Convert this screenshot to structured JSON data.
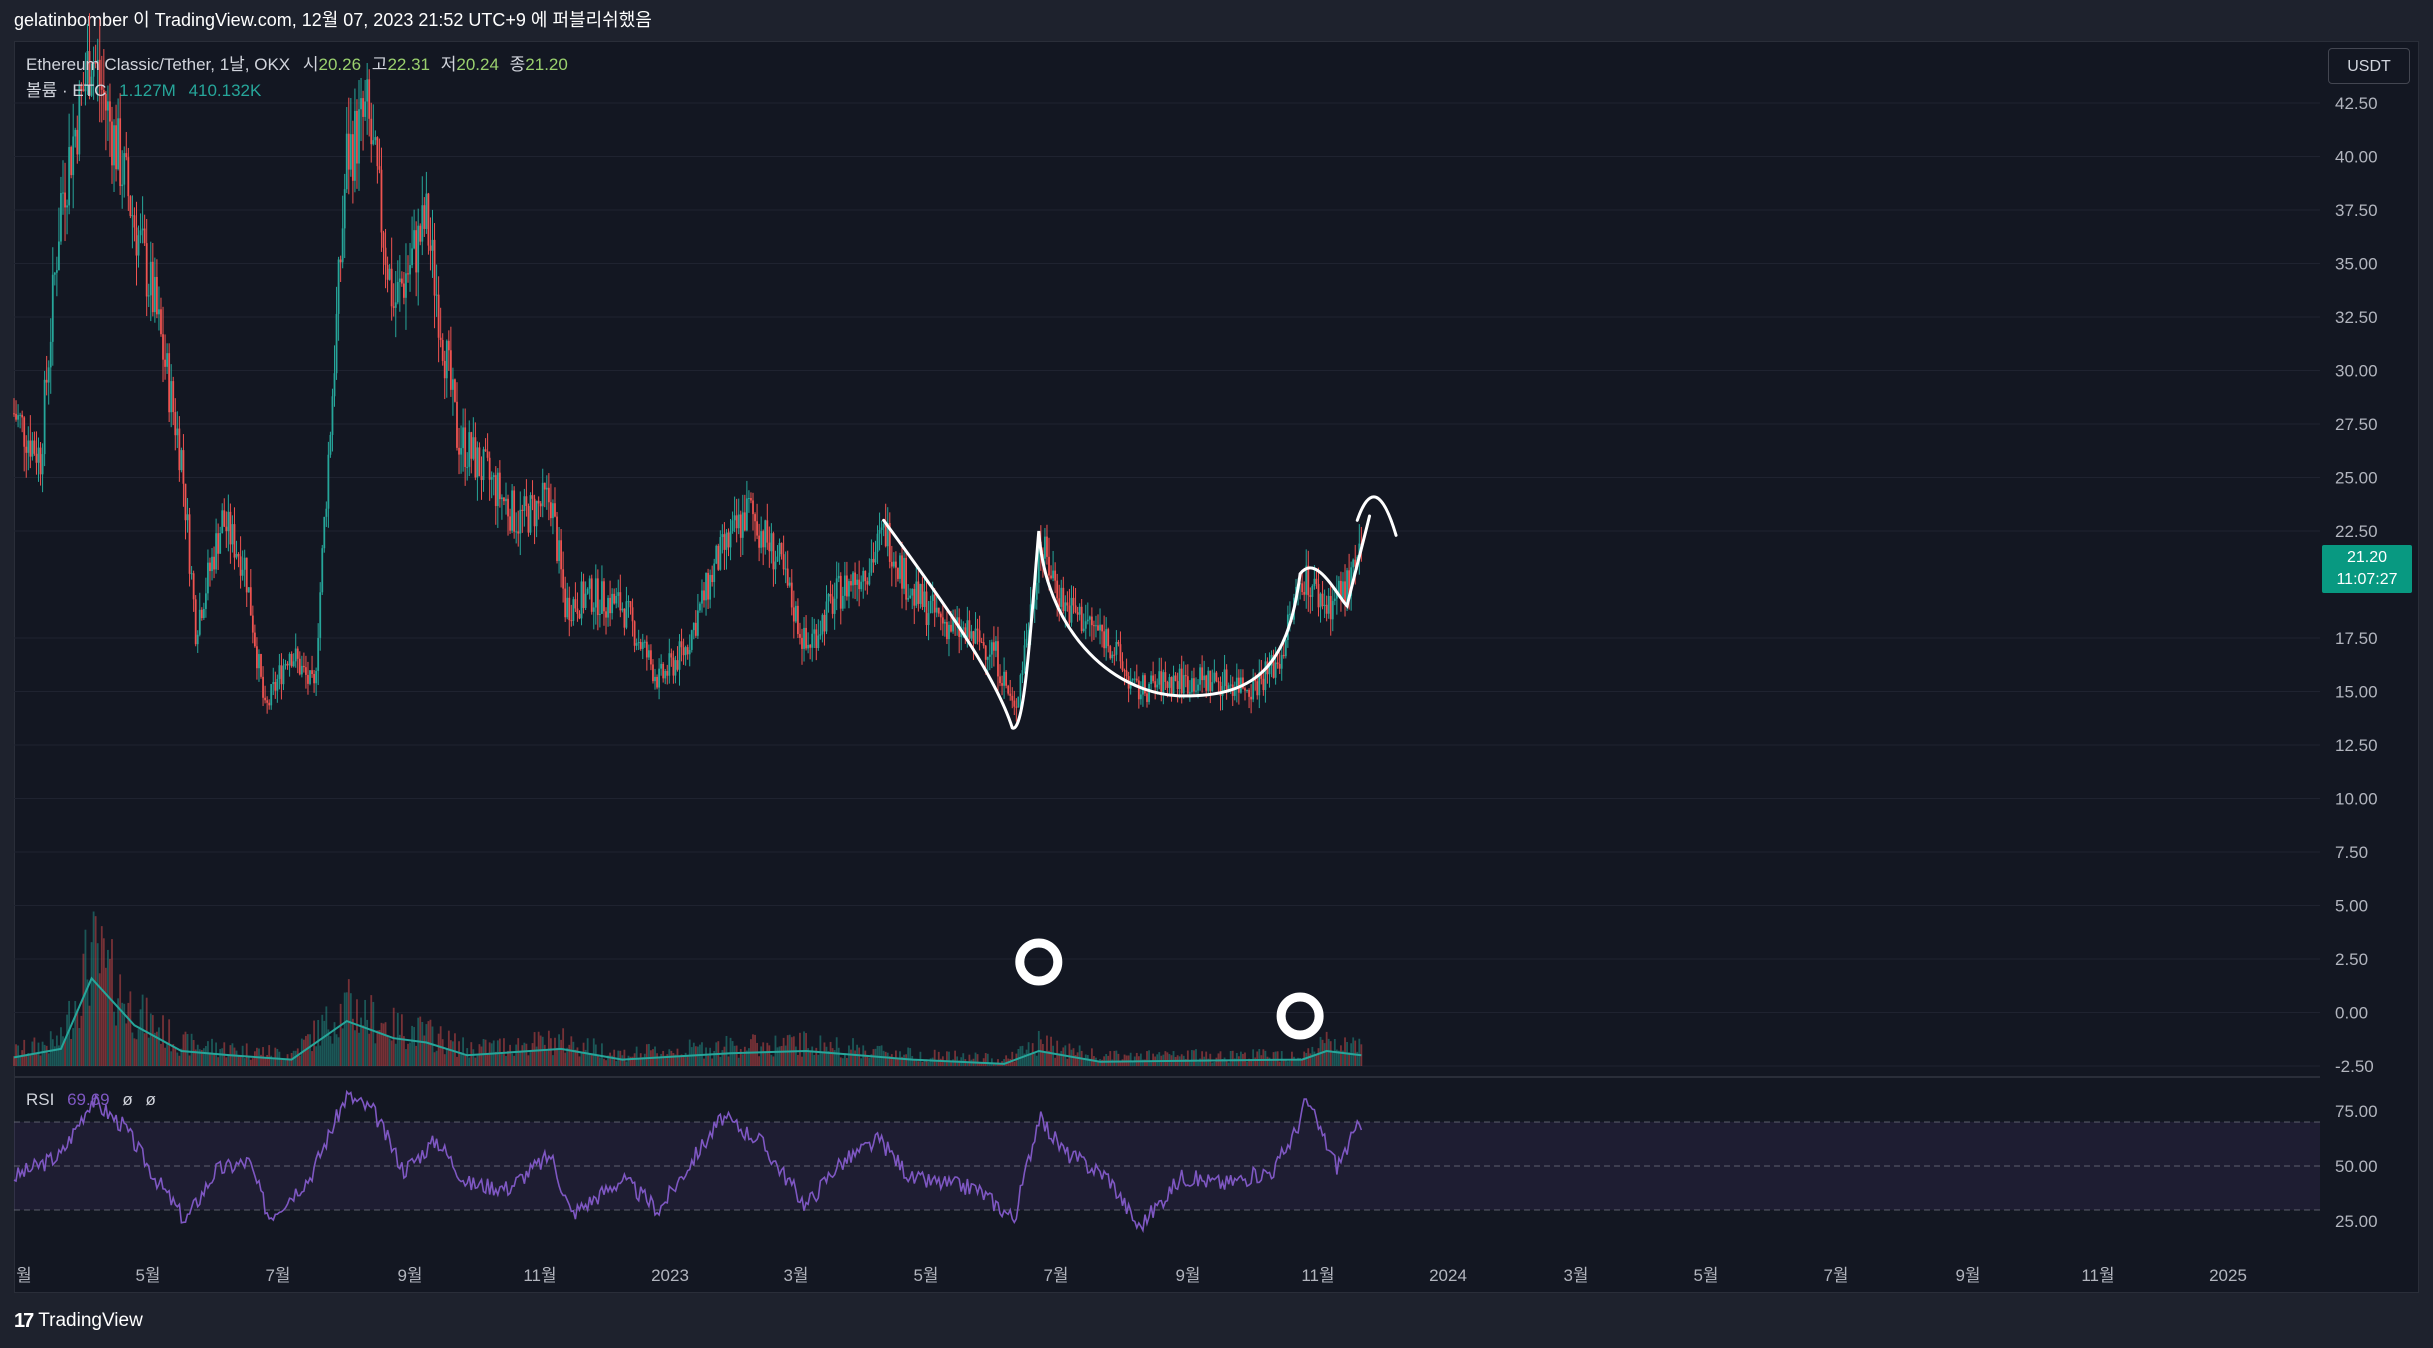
{
  "header": {
    "text": "gelatinbomber 이 TradingView.com, 12월 07, 2023 21:52 UTC+9 에 퍼블리쉬했음"
  },
  "legend": {
    "symbol": "Ethereum Classic/Tether, 1날, OKX",
    "open_label": "시",
    "open": "20.26",
    "high_label": "고",
    "high": "22.31",
    "low_label": "저",
    "low": "20.24",
    "close_label": "종",
    "close": "21.20",
    "volume_label": "볼륨 · ETC",
    "volume_value": "1.127M",
    "volume_ma": "410.132K"
  },
  "rsi_legend": {
    "label": "RSI",
    "value": "69.69",
    "extra1": "ø",
    "extra2": "ø"
  },
  "price_scale": {
    "currency": "USDT",
    "last_price": "21.20",
    "countdown": "11:07:27",
    "ticks": [
      "42.50",
      "40.00",
      "37.50",
      "35.00",
      "32.50",
      "30.00",
      "27.50",
      "25.00",
      "22.50",
      "17.50",
      "15.00",
      "12.50",
      "10.00",
      "7.50",
      "5.00",
      "2.50",
      "0.00",
      "-2.50"
    ]
  },
  "rsi_scale": {
    "ticks": [
      "75.00",
      "50.00",
      "25.00"
    ]
  },
  "time_axis": {
    "labels": [
      "월",
      "5월",
      "7월",
      "9월",
      "11월",
      "2023",
      "3월",
      "5월",
      "7월",
      "9월",
      "11월",
      "2024",
      "3월",
      "5월",
      "7월",
      "9월",
      "11월",
      "2025"
    ]
  },
  "footer": {
    "brand": "TradingView"
  },
  "colors": {
    "background": "#131722",
    "up": "#26a69a",
    "down": "#ef5350",
    "rsi": "#7e57c2",
    "volume_ma": "#26a69a",
    "annotation": "#ffffff"
  },
  "chart_data": {
    "type": "candlestick",
    "symbol": "Ethereum Classic/Tether",
    "interval": "1D",
    "exchange": "OKX",
    "price_range": [
      -2.5,
      44
    ],
    "price_path": [
      [
        "2022-02-15",
        28
      ],
      [
        "2022-02-28",
        26
      ],
      [
        "2022-03-10",
        38
      ],
      [
        "2022-03-25",
        45
      ],
      [
        "2022-04-10",
        39
      ],
      [
        "2022-04-25",
        33
      ],
      [
        "2022-05-08",
        26
      ],
      [
        "2022-05-15",
        18
      ],
      [
        "2022-05-28",
        23
      ],
      [
        "2022-06-08",
        21
      ],
      [
        "2022-06-18",
        14
      ],
      [
        "2022-06-30",
        17
      ],
      [
        "2022-07-12",
        15
      ],
      [
        "2022-07-28",
        40
      ],
      [
        "2022-08-07",
        42
      ],
      [
        "2022-08-20",
        33
      ],
      [
        "2022-09-05",
        37
      ],
      [
        "2022-09-20",
        27
      ],
      [
        "2022-10-05",
        25
      ],
      [
        "2022-10-20",
        23
      ],
      [
        "2022-11-05",
        24
      ],
      [
        "2022-11-12",
        19
      ],
      [
        "2022-11-25",
        19.5
      ],
      [
        "2022-12-10",
        19
      ],
      [
        "2022-12-28",
        15.5
      ],
      [
        "2023-01-10",
        17
      ],
      [
        "2023-01-25",
        21
      ],
      [
        "2023-02-10",
        23.5
      ],
      [
        "2023-02-25",
        21
      ],
      [
        "2023-03-10",
        17
      ],
      [
        "2023-03-25",
        19.5
      ],
      [
        "2023-04-10",
        21
      ],
      [
        "2023-04-18",
        22.5
      ],
      [
        "2023-05-01",
        19.5
      ],
      [
        "2023-05-20",
        18
      ],
      [
        "2023-06-10",
        17
      ],
      [
        "2023-06-20",
        14
      ],
      [
        "2023-06-30",
        20
      ],
      [
        "2023-07-02",
        22
      ],
      [
        "2023-07-15",
        19
      ],
      [
        "2023-08-05",
        17.5
      ],
      [
        "2023-08-18",
        15
      ],
      [
        "2023-09-05",
        15.5
      ],
      [
        "2023-09-25",
        15.5
      ],
      [
        "2023-10-15",
        15.3
      ],
      [
        "2023-10-28",
        16.5
      ],
      [
        "2023-11-08",
        20.5
      ],
      [
        "2023-11-20",
        19
      ],
      [
        "2023-12-01",
        20
      ],
      [
        "2023-12-07",
        21.2
      ]
    ],
    "volume_ma_path": [
      [
        "2022-02-15",
        0.3
      ],
      [
        "2022-03-10",
        0.7
      ],
      [
        "2022-03-25",
        4.0
      ],
      [
        "2022-04-15",
        1.8
      ],
      [
        "2022-05-08",
        0.6
      ],
      [
        "2022-06-01",
        0.4
      ],
      [
        "2022-07-01",
        0.2
      ],
      [
        "2022-07-28",
        2.0
      ],
      [
        "2022-08-20",
        1.2
      ],
      [
        "2022-09-05",
        1.0
      ],
      [
        "2022-09-25",
        0.4
      ],
      [
        "2022-11-10",
        0.7
      ],
      [
        "2022-12-10",
        0.2
      ],
      [
        "2023-02-01",
        0.5
      ],
      [
        "2023-03-10",
        0.6
      ],
      [
        "2023-05-01",
        0.2
      ],
      [
        "2023-06-15",
        0.0
      ],
      [
        "2023-07-02",
        0.6
      ],
      [
        "2023-08-01",
        0.1
      ],
      [
        "2023-11-08",
        0.2
      ],
      [
        "2023-11-20",
        0.6
      ],
      [
        "2023-12-07",
        0.4
      ]
    ],
    "rsi_range": [
      20,
      85
    ],
    "rsi_levels": [
      30,
      50,
      70
    ],
    "rsi_path": [
      [
        "2022-02-15",
        45
      ],
      [
        "2022-03-10",
        55
      ],
      [
        "2022-03-25",
        80
      ],
      [
        "2022-04-10",
        68
      ],
      [
        "2022-04-25",
        45
      ],
      [
        "2022-05-10",
        25
      ],
      [
        "2022-05-25",
        48
      ],
      [
        "2022-06-10",
        52
      ],
      [
        "2022-06-20",
        27
      ],
      [
        "2022-07-10",
        45
      ],
      [
        "2022-07-28",
        82
      ],
      [
        "2022-08-10",
        75
      ],
      [
        "2022-08-25",
        48
      ],
      [
        "2022-09-10",
        62
      ],
      [
        "2022-09-25",
        42
      ],
      [
        "2022-10-15",
        40
      ],
      [
        "2022-11-05",
        55
      ],
      [
        "2022-11-15",
        28
      ],
      [
        "2022-12-10",
        44
      ],
      [
        "2022-12-28",
        30
      ],
      [
        "2023-01-15",
        55
      ],
      [
        "2023-01-28",
        72
      ],
      [
        "2023-02-15",
        62
      ],
      [
        "2023-03-10",
        32
      ],
      [
        "2023-03-25",
        50
      ],
      [
        "2023-04-15",
        62
      ],
      [
        "2023-05-01",
        44
      ],
      [
        "2023-06-01",
        40
      ],
      [
        "2023-06-20",
        26
      ],
      [
        "2023-07-02",
        72
      ],
      [
        "2023-07-15",
        56
      ],
      [
        "2023-08-05",
        45
      ],
      [
        "2023-08-20",
        22
      ],
      [
        "2023-09-10",
        45
      ],
      [
        "2023-10-01",
        42
      ],
      [
        "2023-10-25",
        48
      ],
      [
        "2023-11-05",
        66
      ],
      [
        "2023-11-10",
        80
      ],
      [
        "2023-11-25",
        50
      ],
      [
        "2023-12-07",
        70
      ]
    ],
    "annotations": [
      "cup-and-handle breakout sketch with upward arrow",
      "two circles marking volume spikes (Jul 2023, Nov 2023)"
    ]
  }
}
